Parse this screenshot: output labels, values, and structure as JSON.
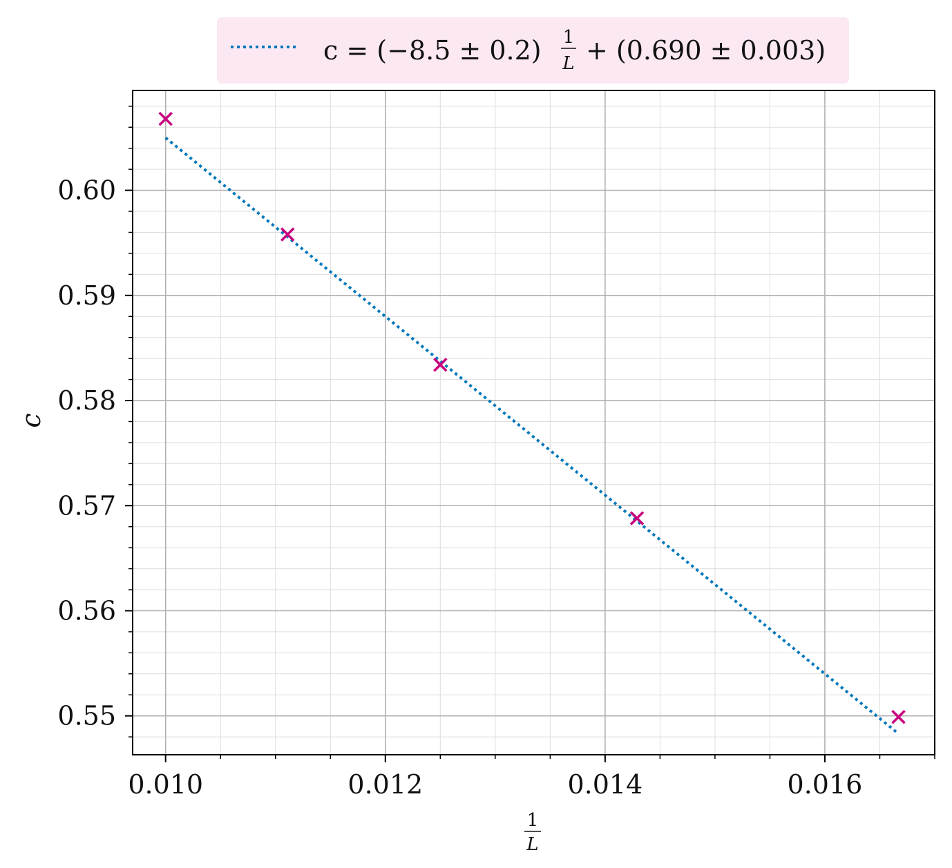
{
  "chart_data": {
    "type": "scatter",
    "xlabel_num": "1",
    "xlabel_den": "L",
    "ylabel": "c",
    "xlim": [
      0.0097,
      0.017
    ],
    "ylim": [
      0.5463,
      0.6095
    ],
    "x_ticks": [
      0.01,
      0.012,
      0.014,
      0.016
    ],
    "x_tick_labels": [
      "0.010",
      "0.012",
      "0.014",
      "0.016"
    ],
    "y_ticks": [
      0.55,
      0.56,
      0.57,
      0.58,
      0.59,
      0.6
    ],
    "y_tick_labels": [
      "0.55",
      "0.56",
      "0.57",
      "0.58",
      "0.59",
      "0.60"
    ],
    "x_minor_step": 0.0005,
    "y_minor_step": 0.002,
    "grid": true,
    "legend_position": "top-center, above plot",
    "series": [
      {
        "kind": "points",
        "marker": "x",
        "color": "#c8007e",
        "x": [
          0.01,
          0.01111,
          0.0125,
          0.01429,
          0.01667
        ],
        "y": [
          0.6068,
          0.5958,
          0.5834,
          0.5688,
          0.5499
        ]
      },
      {
        "kind": "fit-line",
        "style": "dotted",
        "color": "#0077bb",
        "slope": -8.5,
        "intercept": 0.69,
        "x_range": [
          0.01,
          0.01667
        ],
        "legend": {
          "prefix": "c = (−8.5 ± 0.2)",
          "frac_num": "1",
          "frac_den": "L",
          "suffix": "+ (0.690 ± 0.003)"
        }
      }
    ]
  },
  "colors": {
    "legend_bg": "#fbe8f3",
    "grid_major": "#b0b0b0",
    "grid_minor": "#dddddd",
    "marker": "#c8007e",
    "fit": "#0077bb"
  }
}
